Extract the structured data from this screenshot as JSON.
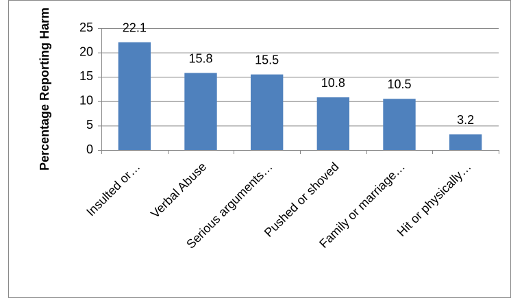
{
  "chart_data": {
    "type": "bar",
    "y_label": "Percentage Reporting Harm",
    "categories": [
      "Insulted or…",
      "Verbal Abuse",
      "Serious arguments…",
      "Pushed or shoved",
      "Family or marriage…",
      "Hit or physically…"
    ],
    "values": [
      22.1,
      15.8,
      15.5,
      10.8,
      10.5,
      3.2
    ],
    "color": "#4f81bd",
    "ylim": [
      0,
      25
    ],
    "yticks": [
      0,
      5,
      10,
      15,
      20,
      25
    ],
    "grid": true
  }
}
